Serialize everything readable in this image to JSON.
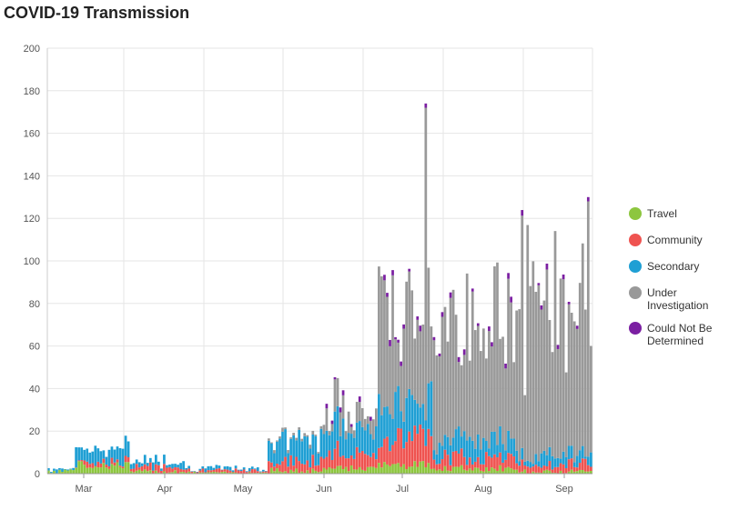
{
  "chart_data": {
    "type": "bar",
    "stacked": true,
    "title": "COVID-19 Transmission",
    "xlabel": "",
    "ylabel": "",
    "ylim": [
      0,
      200
    ],
    "y_ticks": [
      0,
      20,
      40,
      60,
      80,
      100,
      120,
      140,
      160,
      180,
      200
    ],
    "x_ticks": [
      "Mar",
      "Apr",
      "May",
      "Jun",
      "Jul",
      "Aug",
      "Sep"
    ],
    "grid": true,
    "legend_position": "right",
    "series": [
      {
        "name": "Travel",
        "color": "#8dc63f"
      },
      {
        "name": "Community",
        "color": "#ef5350"
      },
      {
        "name": "Secondary",
        "color": "#1f9fd4"
      },
      {
        "name": "Under Investigation",
        "color": "#999999"
      },
      {
        "name": "Could Not Be Determined",
        "color": "#7b1fa2"
      }
    ],
    "legend": {
      "travel": "Travel",
      "community": "Community",
      "secondary": "Secondary",
      "under_1": "Under",
      "under_2": "Investigation",
      "cnbd_1": "Could Not Be",
      "cnbd_2": "Determined"
    },
    "weekly_approx_totals": [
      {
        "period": "Mar",
        "total": 13
      },
      {
        "period": "Apr",
        "total": 4
      },
      {
        "period": "May",
        "total": 2
      },
      {
        "period": "Jun",
        "total": 18
      },
      {
        "period": "Jul",
        "total": 70
      },
      {
        "period": "Aug",
        "total": 75
      },
      {
        "period": "Sep",
        "total": 95
      }
    ]
  }
}
